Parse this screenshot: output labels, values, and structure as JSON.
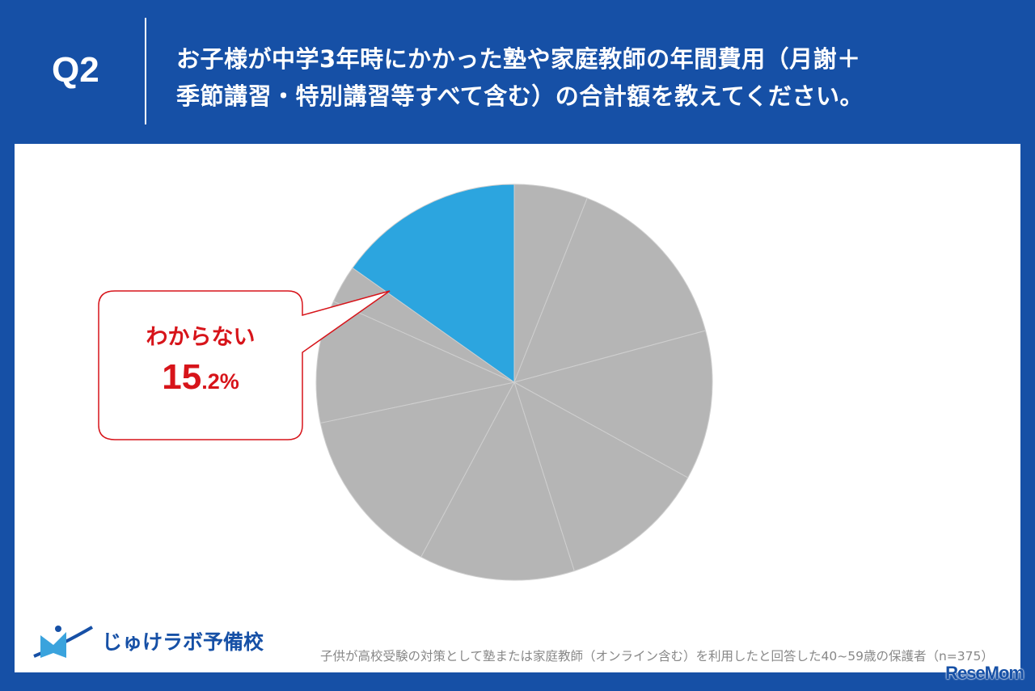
{
  "header": {
    "question": "Q2",
    "title_line1": "お子様が中学3年時にかかった塾や家庭教師の年間費用（月謝＋",
    "title_line2": "季節講習・特別講習等すべて含む）の合計額を教えてください。"
  },
  "chart_data": {
    "type": "pie",
    "start": "top",
    "direction": "clockwise",
    "values": [
      6.0,
      14.8,
      12.2,
      12.1,
      12.7,
      13.9,
      10.0,
      3.1,
      15.2
    ],
    "highlight_index": 8,
    "colors": {
      "default": "#b5b5b5",
      "highlight": "#2ca5df",
      "separator": "#cfcfcf"
    },
    "annotation": {
      "label": "わからない",
      "value_main": "15.2",
      "value_unit": ".2%",
      "value": "15.2%"
    }
  },
  "callout": {
    "label": "わからない",
    "pct_int": "15",
    "pct_rest": ".2%"
  },
  "footer": {
    "logo": "じゅけラボ予備校",
    "note": "子供が高校受験の対策として塾または家庭教師（オンライン含む）を利用したと回答した40~59歳の保護者（n=375）",
    "watermark": "ReseMom"
  }
}
